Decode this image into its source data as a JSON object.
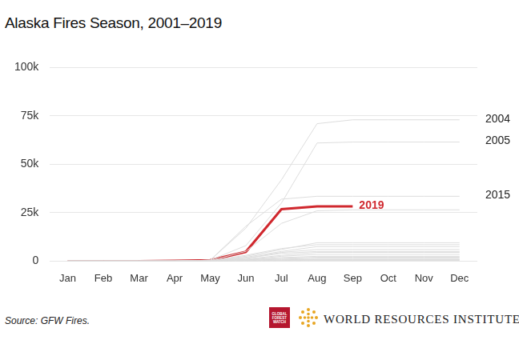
{
  "chart_data": {
    "type": "line",
    "title": "Alaska Fires Season, 2001–2019",
    "categories": [
      "Jan",
      "Feb",
      "Mar",
      "Apr",
      "May",
      "Jun",
      "Jul",
      "Aug",
      "Sep",
      "Oct",
      "Nov",
      "Dec"
    ],
    "series": [
      {
        "color": "#dddddd",
        "values": [
          0,
          0,
          0,
          0,
          300,
          5000,
          19500,
          26000,
          26500,
          26500,
          26500,
          26500
        ]
      },
      {
        "color": "#dddddd",
        "values": [
          0,
          0,
          0,
          0,
          200,
          2500,
          6000,
          9500,
          9500,
          9500,
          9500,
          9500
        ]
      },
      {
        "color": "#dddddd",
        "values": [
          0,
          0,
          0,
          0,
          200,
          3000,
          6500,
          8500,
          8500,
          8500,
          8500,
          8500
        ]
      },
      {
        "color": "#dddddd",
        "values": [
          0,
          0,
          0,
          0,
          100,
          2000,
          5000,
          7500,
          7500,
          7500,
          7500,
          7500
        ]
      },
      {
        "color": "#dddddd",
        "values": [
          0,
          0,
          0,
          0,
          100,
          1500,
          4500,
          6000,
          6000,
          6000,
          6000,
          6000
        ]
      },
      {
        "color": "#dddddd",
        "values": [
          0,
          0,
          0,
          0,
          100,
          1500,
          4000,
          5000,
          5000,
          5000,
          5000,
          5000
        ]
      },
      {
        "color": "#dddddd",
        "values": [
          0,
          0,
          0,
          0,
          100,
          1000,
          3000,
          4500,
          4500,
          4500,
          4500,
          4500
        ]
      },
      {
        "color": "#dddddd",
        "values": [
          0,
          0,
          0,
          0,
          100,
          800,
          2500,
          3500,
          3500,
          3500,
          3500,
          3500
        ]
      },
      {
        "color": "#dddddd",
        "values": [
          0,
          0,
          0,
          0,
          50,
          600,
          1800,
          2500,
          2500,
          2500,
          2500,
          2500
        ]
      },
      {
        "color": "#dddddd",
        "values": [
          0,
          0,
          0,
          0,
          50,
          500,
          1500,
          2000,
          2000,
          2000,
          2000,
          2000
        ]
      },
      {
        "color": "#dddddd",
        "values": [
          0,
          0,
          0,
          0,
          50,
          400,
          1000,
          1500,
          1500,
          1500,
          1500,
          1500
        ]
      },
      {
        "color": "#dddddd",
        "values": [
          0,
          0,
          0,
          0,
          0,
          300,
          700,
          1000,
          1000,
          1000,
          1000,
          1000
        ]
      },
      {
        "color": "#dddddd",
        "values": [
          0,
          0,
          0,
          0,
          0,
          200,
          500,
          800,
          800,
          800,
          800,
          800
        ]
      },
      {
        "color": "#dddddd",
        "values": [
          0,
          0,
          0,
          0,
          0,
          100,
          300,
          500,
          500,
          500,
          500,
          500
        ]
      },
      {
        "color": "#dddddd",
        "values": [
          0,
          0,
          0,
          0,
          0,
          100,
          200,
          300,
          300,
          300,
          300,
          300
        ]
      },
      {
        "name": "2015",
        "color": "#dddddd",
        "values": [
          0,
          0,
          0,
          0,
          500,
          18000,
          32000,
          33500,
          33500,
          33500,
          33500,
          33500
        ]
      },
      {
        "name": "2005",
        "color": "#dddddd",
        "values": [
          0,
          0,
          0,
          0,
          500,
          8000,
          30000,
          61000,
          61500,
          61500,
          61500,
          61500
        ]
      },
      {
        "name": "2004",
        "color": "#dddddd",
        "values": [
          0,
          0,
          0,
          0,
          500,
          17000,
          42000,
          71000,
          73000,
          73000,
          73000,
          73000
        ]
      },
      {
        "name": "2019",
        "color": "#d0282e",
        "values": [
          0,
          0,
          0,
          200,
          500,
          4800,
          26800,
          28300,
          28300,
          null,
          null,
          null
        ]
      }
    ],
    "ylim": [
      0,
      100000
    ],
    "yticks": [
      0,
      {
        "value": 25000,
        "label": "25k"
      },
      {
        "value": 50000,
        "label": "50k"
      },
      {
        "value": 75000,
        "label": "75k"
      },
      {
        "value": 100000,
        "label": "100k"
      }
    ],
    "grid": true,
    "source": "Source: GFW Fires.",
    "logo_gfw": "GLOBAL FOREST WATCH",
    "logo_wri": "WORLD RESOURCES INSTITUTE"
  }
}
